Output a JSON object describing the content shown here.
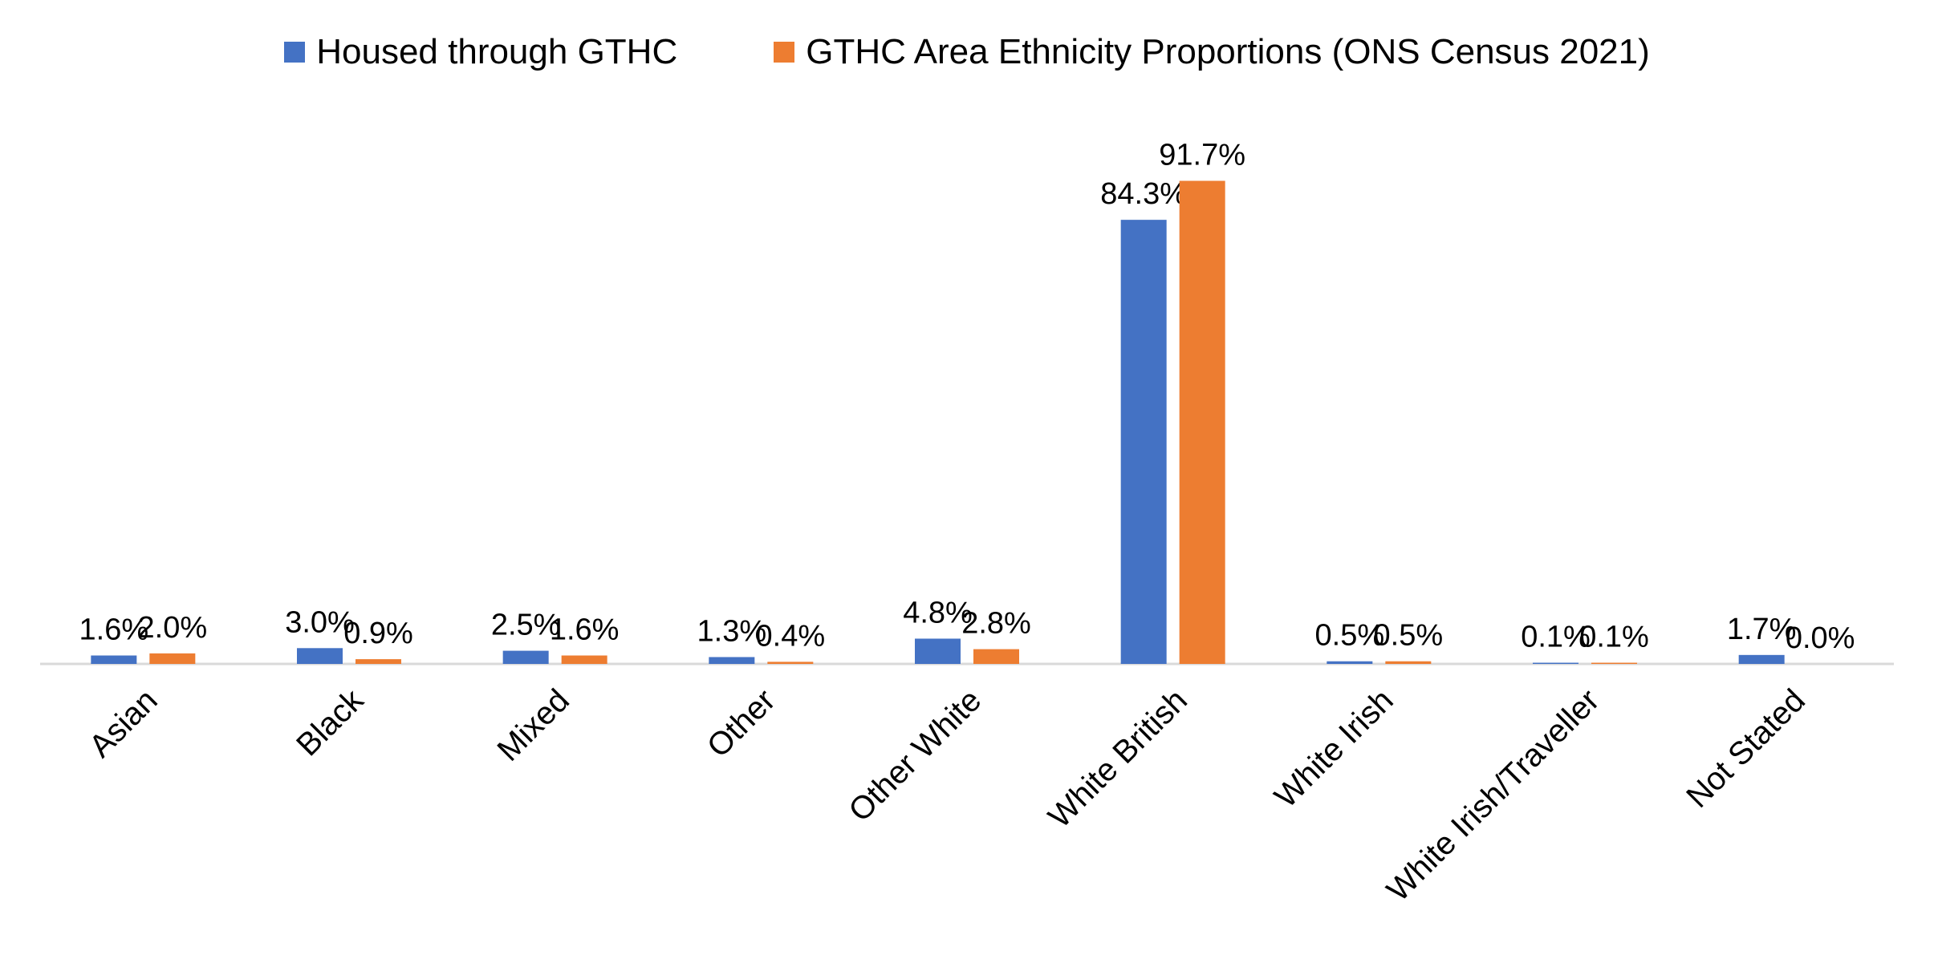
{
  "chart_data": {
    "type": "bar",
    "title": "",
    "xlabel": "",
    "ylabel": "",
    "ylim": [
      0,
      100
    ],
    "grid": false,
    "legend_position": "top",
    "categories": [
      "Asian",
      "Black",
      "Mixed",
      "Other",
      "Other White",
      "White British",
      "White Irish",
      "White Irish/Traveller",
      "Not Stated"
    ],
    "series": [
      {
        "name": "Housed through GTHC",
        "color": "#4472C4",
        "values": [
          1.6,
          3.0,
          2.5,
          1.3,
          4.8,
          84.3,
          0.5,
          0.1,
          1.7
        ],
        "labels": [
          "1.6%",
          "3.0%",
          "2.5%",
          "1.3%",
          "4.8%",
          "84.3%",
          "0.5%",
          "0.1%",
          "1.7%"
        ]
      },
      {
        "name": "GTHC Area Ethnicity Proportions (ONS Census 2021)",
        "color": "#ED7D31",
        "values": [
          2.0,
          0.9,
          1.6,
          0.4,
          2.8,
          91.7,
          0.5,
          0.1,
          0.0
        ],
        "labels": [
          "2.0%",
          "0.9%",
          "1.6%",
          "0.4%",
          "2.8%",
          "91.7%",
          "0.5%",
          "0.1%",
          "0.0%"
        ]
      }
    ]
  }
}
